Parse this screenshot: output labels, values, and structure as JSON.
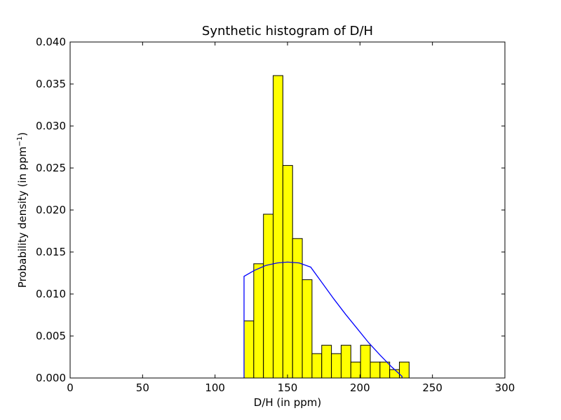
{
  "chart_data": {
    "type": "bar",
    "title": "Synthetic histogram of D/H",
    "xlabel": "D/H (in ppm)",
    "ylabel_main": "Probability density (in ppm",
    "ylabel_sup": "−1",
    "ylabel_end": ")",
    "xlim": [
      0,
      300
    ],
    "ylim": [
      0,
      0.04
    ],
    "xticks": [
      0,
      50,
      100,
      150,
      200,
      250,
      300
    ],
    "xtick_labels": [
      "0",
      "50",
      "100",
      "150",
      "200",
      "250",
      "300"
    ],
    "yticks": [
      0,
      0.005,
      0.01,
      0.015,
      0.02,
      0.025,
      0.03,
      0.035,
      0.04
    ],
    "ytick_labels": [
      "0.000",
      "0.005",
      "0.010",
      "0.015",
      "0.020",
      "0.025",
      "0.030",
      "0.035",
      "0.040"
    ],
    "grid": false,
    "bar_color": "#ffff00",
    "bar_edge_color": "#000000",
    "line_color": "#0000ff",
    "bin_width": 6.7,
    "bins": [
      {
        "x_start": 120.0,
        "value": 0.0068
      },
      {
        "x_start": 126.7,
        "value": 0.0136
      },
      {
        "x_start": 133.4,
        "value": 0.0195
      },
      {
        "x_start": 140.1,
        "value": 0.036
      },
      {
        "x_start": 146.8,
        "value": 0.0253
      },
      {
        "x_start": 153.5,
        "value": 0.0166
      },
      {
        "x_start": 160.2,
        "value": 0.0117
      },
      {
        "x_start": 166.9,
        "value": 0.0029
      },
      {
        "x_start": 173.6,
        "value": 0.0039
      },
      {
        "x_start": 180.3,
        "value": 0.0029
      },
      {
        "x_start": 187.0,
        "value": 0.0039
      },
      {
        "x_start": 193.7,
        "value": 0.0019
      },
      {
        "x_start": 200.4,
        "value": 0.0039
      },
      {
        "x_start": 207.1,
        "value": 0.0019
      },
      {
        "x_start": 213.8,
        "value": 0.0019
      },
      {
        "x_start": 220.5,
        "value": 0.001
      },
      {
        "x_start": 227.2,
        "value": 0.0019
      }
    ],
    "density_curve": {
      "x": [
        120,
        120,
        127,
        135,
        143,
        150,
        158,
        166,
        174,
        182,
        190,
        198,
        206,
        214,
        222,
        229,
        229
      ],
      "y": [
        0,
        0.0121,
        0.0128,
        0.0134,
        0.0137,
        0.0138,
        0.0137,
        0.0132,
        0.0113,
        0.0094,
        0.0076,
        0.0059,
        0.0042,
        0.0027,
        0.0013,
        0.0002,
        0
      ]
    }
  }
}
